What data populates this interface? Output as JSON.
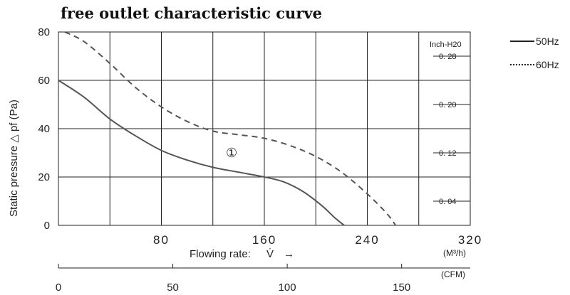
{
  "chart_data": {
    "type": "line",
    "title": "free outlet characteristic curve",
    "ylabel": "Static pressure △ pf (Pa)",
    "xlabel": "Flowing rate:",
    "xlabel_symbol": "V̇",
    "xlabel_arrow": "→",
    "x_unit": "(M³/h)",
    "ylim": [
      0,
      80
    ],
    "xlim": [
      0,
      320
    ],
    "y_ticks": [
      "0",
      "20",
      "40",
      "60",
      "80"
    ],
    "x_ticks": [
      "80",
      "160",
      "240",
      "320"
    ],
    "right_axis": {
      "label": "Inch-H20",
      "ticks": [
        "0. 04",
        "0. 12",
        "0. 20",
        "0. 28"
      ]
    },
    "cfm_axis": {
      "unit": "(CFM)",
      "ticks": [
        "0",
        "50",
        "100",
        "150"
      ]
    },
    "annotation": "①",
    "grid": true,
    "legend_position": "right",
    "series": [
      {
        "name": "50Hz",
        "style": "solid",
        "color": "#555555",
        "points": [
          [
            0,
            60
          ],
          [
            20,
            53
          ],
          [
            40,
            44
          ],
          [
            60,
            37
          ],
          [
            80,
            31
          ],
          [
            100,
            27
          ],
          [
            120,
            24
          ],
          [
            140,
            22
          ],
          [
            160,
            20
          ],
          [
            175,
            18
          ],
          [
            190,
            14
          ],
          [
            205,
            8
          ],
          [
            215,
            3
          ],
          [
            222,
            0
          ]
        ]
      },
      {
        "name": "60Hz",
        "style": "dashed",
        "color": "#555555",
        "points": [
          [
            5,
            80
          ],
          [
            20,
            76
          ],
          [
            40,
            67
          ],
          [
            60,
            57
          ],
          [
            80,
            49
          ],
          [
            100,
            43
          ],
          [
            120,
            39
          ],
          [
            140,
            37.5
          ],
          [
            160,
            36
          ],
          [
            180,
            33
          ],
          [
            200,
            28.5
          ],
          [
            220,
            22
          ],
          [
            240,
            13
          ],
          [
            255,
            5
          ],
          [
            262,
            0
          ]
        ]
      }
    ]
  }
}
